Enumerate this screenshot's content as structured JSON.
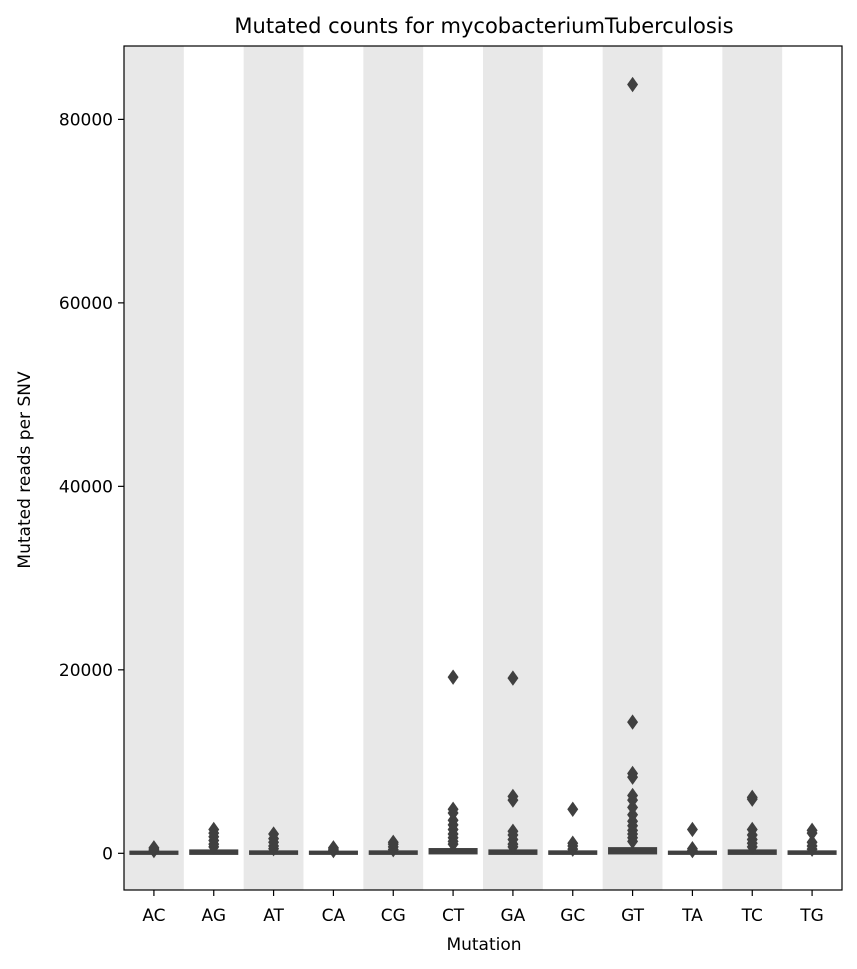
{
  "chart_data": {
    "type": "box",
    "title": "Mutated counts for mycobacteriumTuberculosis",
    "xlabel": "Mutation",
    "ylabel": "Mutated reads per SNV",
    "ylim": [
      -4000,
      88000
    ],
    "yticks": [
      0,
      20000,
      40000,
      60000,
      80000
    ],
    "yticklabels": [
      "0",
      "20000",
      "40000",
      "60000",
      "80000"
    ],
    "categories": [
      "AC",
      "AG",
      "AT",
      "CA",
      "CG",
      "CT",
      "GA",
      "GC",
      "GT",
      "TA",
      "TC",
      "TG"
    ],
    "shaded_bands": [
      "AC",
      "AT",
      "CG",
      "GA",
      "GT",
      "TC"
    ],
    "colors": {
      "band": "#e8e8e8",
      "box": "#404040",
      "background": "#ffffff"
    },
    "boxes": [
      {
        "category": "AC",
        "q1": 0,
        "median": 30,
        "q3": 120,
        "whisker_low": 0,
        "whisker_high": 250,
        "outliers": [
          300,
          450,
          600
        ]
      },
      {
        "category": "AG",
        "q1": 0,
        "median": 50,
        "q3": 250,
        "whisker_low": 0,
        "whisker_high": 500,
        "outliers": [
          700,
          1000,
          1400,
          1800,
          2200,
          2600
        ]
      },
      {
        "category": "AT",
        "q1": 0,
        "median": 40,
        "q3": 150,
        "whisker_low": 0,
        "whisker_high": 350,
        "outliers": [
          500,
          800,
          1200,
          1600,
          2100
        ]
      },
      {
        "category": "CA",
        "q1": 0,
        "median": 30,
        "q3": 120,
        "whisker_low": 0,
        "whisker_high": 250,
        "outliers": [
          300,
          450,
          600
        ]
      },
      {
        "category": "CG",
        "q1": 0,
        "median": 40,
        "q3": 150,
        "whisker_low": 0,
        "whisker_high": 300,
        "outliers": [
          400,
          700,
          1000,
          1200
        ]
      },
      {
        "category": "CT",
        "q1": 50,
        "median": 150,
        "q3": 400,
        "whisker_low": 0,
        "whisker_high": 800,
        "outliers": [
          1000,
          1300,
          1700,
          2100,
          2600,
          3100,
          3600,
          4400,
          4800,
          19200
        ]
      },
      {
        "category": "GA",
        "q1": 0,
        "median": 60,
        "q3": 250,
        "whisker_low": 0,
        "whisker_high": 500,
        "outliers": [
          700,
          1000,
          1500,
          2000,
          2400,
          5800,
          6200,
          19100
        ]
      },
      {
        "category": "GC",
        "q1": 0,
        "median": 30,
        "q3": 150,
        "whisker_low": 0,
        "whisker_high": 300,
        "outliers": [
          450,
          800,
          1100,
          4800
        ]
      },
      {
        "category": "GT",
        "q1": 50,
        "median": 150,
        "q3": 500,
        "whisker_low": 0,
        "whisker_high": 1000,
        "outliers": [
          1300,
          1700,
          2100,
          2500,
          3000,
          3500,
          4200,
          5000,
          5800,
          6300,
          8300,
          8700,
          14300,
          83800
        ]
      },
      {
        "category": "TA",
        "q1": 0,
        "median": 30,
        "q3": 120,
        "whisker_low": 0,
        "whisker_high": 250,
        "outliers": [
          300,
          500,
          2600
        ]
      },
      {
        "category": "TC",
        "q1": 0,
        "median": 60,
        "q3": 250,
        "whisker_low": 0,
        "whisker_high": 500,
        "outliers": [
          700,
          1100,
          1500,
          2000,
          2600,
          5900,
          6100
        ]
      },
      {
        "category": "TG",
        "q1": 0,
        "median": 40,
        "q3": 150,
        "whisker_low": 0,
        "whisker_high": 300,
        "outliers": [
          450,
          800,
          1200,
          2200,
          2500
        ]
      }
    ]
  }
}
